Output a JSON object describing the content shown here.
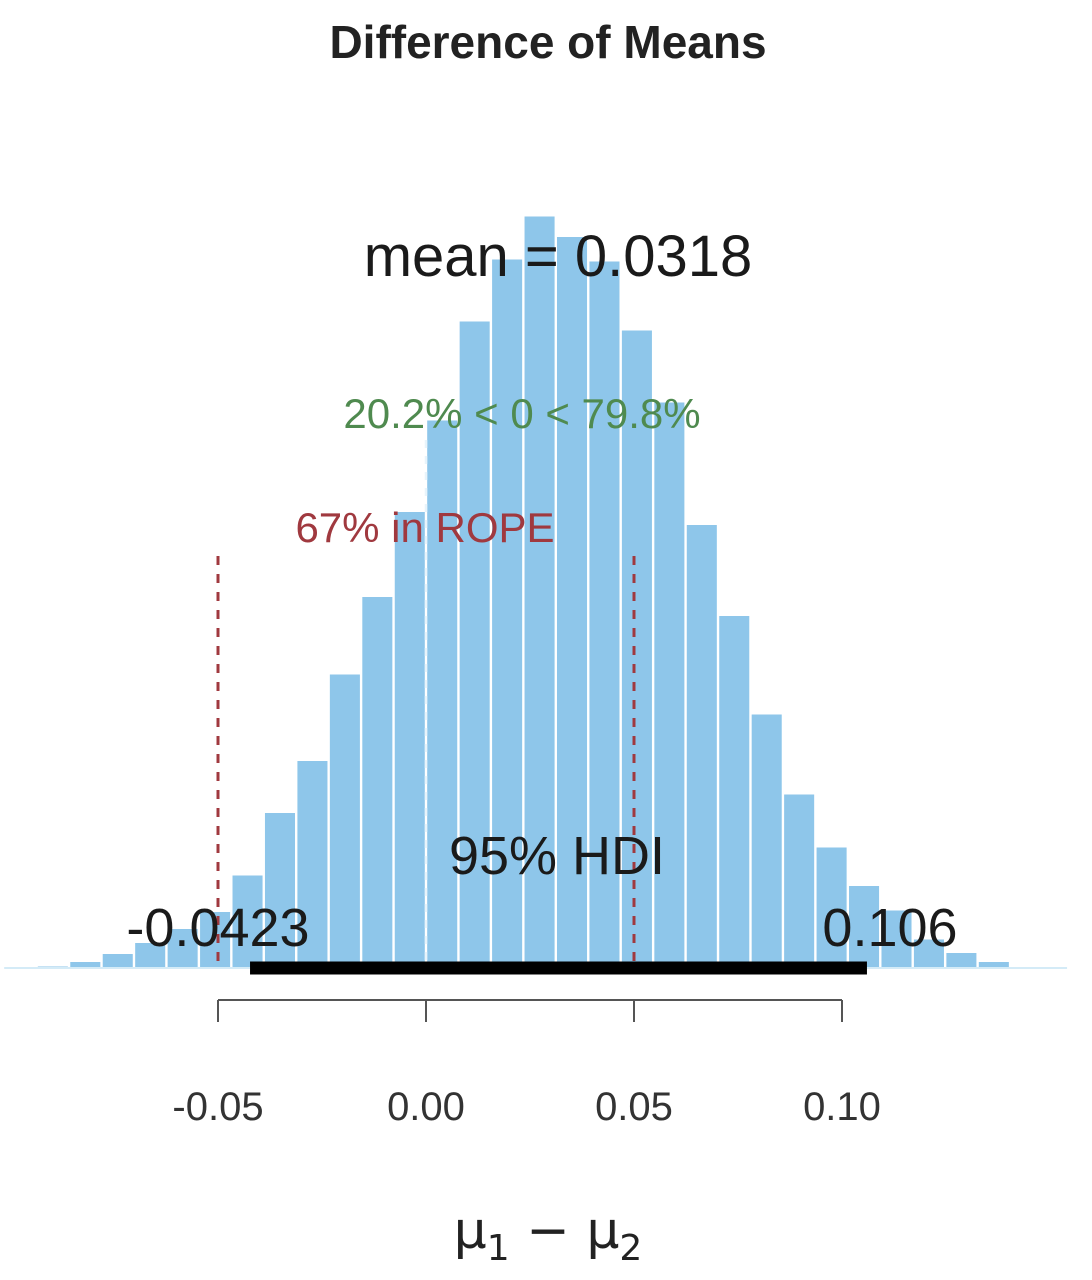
{
  "chart_data": {
    "type": "bar",
    "title": "Difference of Means",
    "xlabel": "μ1 − μ2",
    "xlabel_main": "μ",
    "xlabel_sub1": "1",
    "xlabel_minus": " − ",
    "xlabel_sub2": "2",
    "xlim": [
      -0.1014,
      0.1541
    ],
    "xticks": [
      -0.05,
      0.0,
      0.05,
      0.1
    ],
    "tick_labels": [
      "-0.05",
      "0.00",
      "0.05",
      "0.10"
    ],
    "grid": false,
    "legend": "none",
    "bin_width": 0.0078,
    "bin_starts": [
      -0.0936,
      -0.0858,
      -0.078,
      -0.0702,
      -0.0624,
      -0.0546,
      -0.0468,
      -0.039,
      -0.0312,
      -0.0234,
      -0.0156,
      -0.0078,
      0.0,
      0.0078,
      0.0156,
      0.0234,
      0.0312,
      0.039,
      0.0468,
      0.0546,
      0.0624,
      0.0702,
      0.078,
      0.0858,
      0.0936,
      0.1014,
      0.1092,
      0.117,
      0.1248,
      0.1326
    ],
    "values": [
      0.3,
      1.2,
      2.8,
      5.0,
      7.8,
      11.2,
      18.5,
      31.0,
      41.4,
      58.7,
      74.2,
      91.2,
      109.5,
      129.3,
      141.7,
      150.3,
      146.2,
      141.3,
      127.5,
      113.1,
      88.6,
      70.4,
      50.7,
      34.7,
      24.1,
      16.4,
      11.5,
      5.7,
      3.0,
      1.2
    ],
    "mean_label": "mean = 0.0318",
    "mean": 0.0318,
    "comparison": {
      "value": 0,
      "label": "20.2% < 0 < 79.8%",
      "color": "#4f8a4f"
    },
    "rope": {
      "low": -0.05,
      "high": 0.05,
      "label": "67% in ROPE",
      "color": "#a0393f"
    },
    "hdi": {
      "low": -0.0423,
      "high": 0.106,
      "label": "95% HDI",
      "low_label": "-0.0423",
      "high_label": "0.106"
    },
    "bar_color": "#8ec6ea"
  }
}
